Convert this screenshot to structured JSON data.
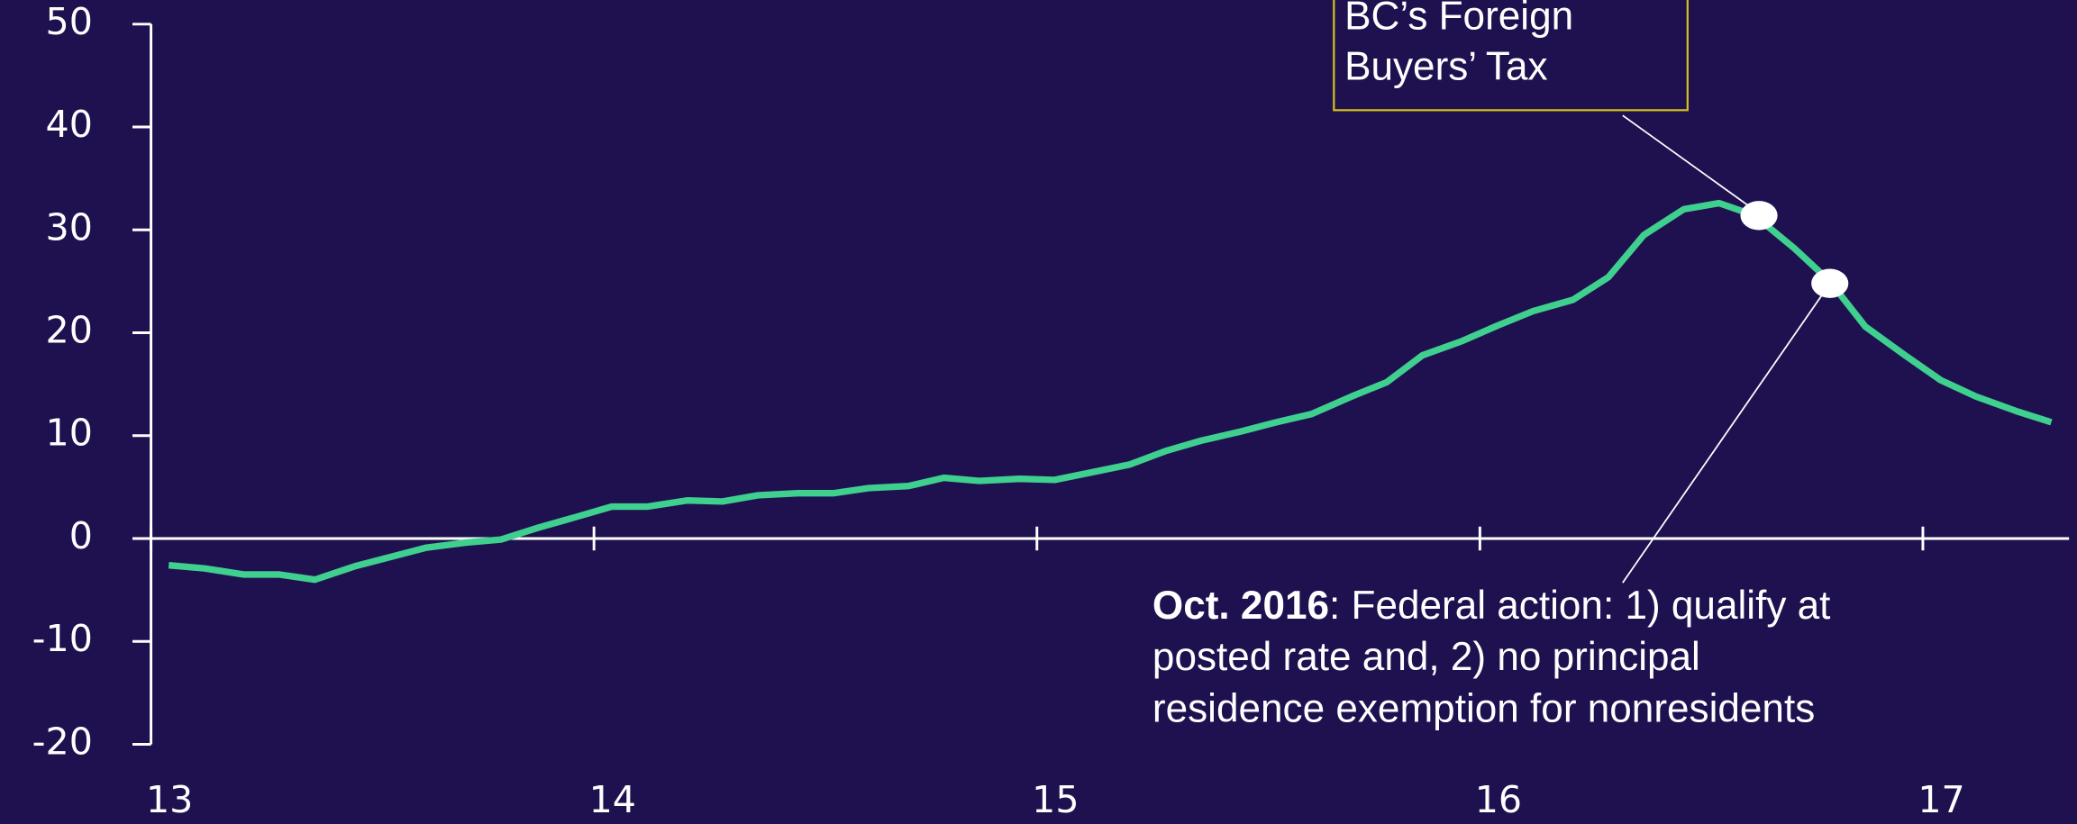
{
  "chart_data": {
    "type": "line",
    "x": [
      13.04,
      13.12,
      13.21,
      13.29,
      13.37,
      13.46,
      13.54,
      13.62,
      13.71,
      13.79,
      13.87,
      13.96,
      14.04,
      14.12,
      14.21,
      14.29,
      14.37,
      14.46,
      14.54,
      14.62,
      14.71,
      14.79,
      14.87,
      14.96,
      15.04,
      15.12,
      15.21,
      15.29,
      15.37,
      15.46,
      15.54,
      15.62,
      15.71,
      15.79,
      15.87,
      15.96,
      16.04,
      16.12,
      16.21,
      16.29,
      16.37,
      16.46,
      16.54,
      16.62,
      16.71,
      16.79,
      16.87,
      16.96,
      17.04,
      17.12,
      17.21,
      17.29
    ],
    "series": [
      {
        "color": "#3fcf8e",
        "values": [
          -2.6,
          -2.9,
          -3.5,
          -3.5,
          -4.0,
          -2.7,
          -1.8,
          -0.9,
          -0.4,
          -0.1,
          1.0,
          2.1,
          3.1,
          3.1,
          3.7,
          3.6,
          4.2,
          4.4,
          4.4,
          4.9,
          5.1,
          5.9,
          5.6,
          5.8,
          5.7,
          6.4,
          7.2,
          8.5,
          9.5,
          10.4,
          11.3,
          12.1,
          13.8,
          15.2,
          17.8,
          19.2,
          20.7,
          22.1,
          23.2,
          25.4,
          29.5,
          32.0,
          32.6,
          31.4,
          28.2,
          25.0,
          20.6,
          17.8,
          15.4,
          13.8,
          12.4,
          11.3
        ]
      }
    ],
    "xlim": [
      13,
      17.33
    ],
    "xticks": [
      13,
      14,
      15,
      16,
      17
    ],
    "ylim": [
      -20,
      50
    ],
    "yticks": [
      -20,
      -10,
      0,
      10,
      20,
      30,
      40,
      50
    ],
    "annotations": [
      {
        "x": 16.63,
        "y": 31.4,
        "lines": [
          "BC’s Foreign",
          "Buyers’ Tax"
        ]
      },
      {
        "x": 16.79,
        "y": 24.8,
        "bold": "Oct. 2016",
        "lines": [
          ": Federal action: 1) qualify at",
          "posted rate and, 2) no principal",
          "residence exemption for nonresidents"
        ]
      }
    ]
  }
}
